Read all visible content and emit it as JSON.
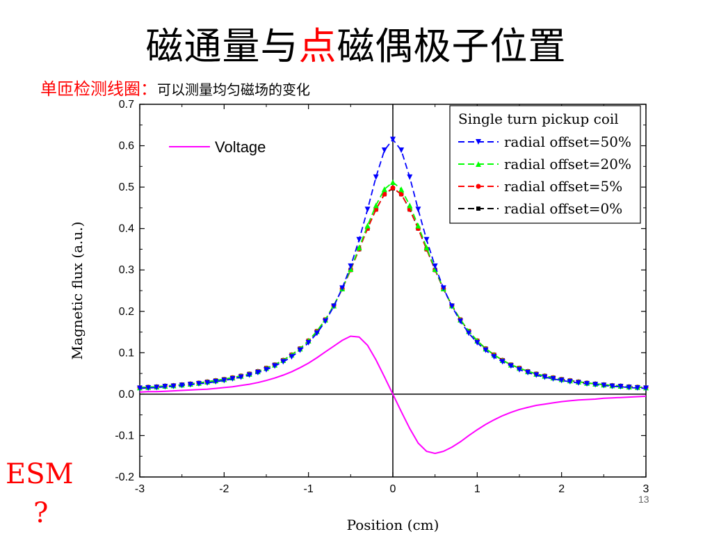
{
  "slide": {
    "title_part1": "磁通量与",
    "title_highlight": "点",
    "title_part2": "磁偶极子位置",
    "subtitle_red": "单匝检测线圈：",
    "subtitle_black": "可以测量均匀磁场的变化",
    "esm_label": "ESM",
    "esm_question": "?",
    "page_number": "13"
  },
  "chart_data": {
    "type": "line",
    "title": "",
    "xlabel": "Position  (cm)",
    "ylabel": "Magnetic flux  (a.u.)",
    "xlim": [
      -3,
      3
    ],
    "ylim": [
      -0.2,
      0.7
    ],
    "x_ticks": [
      -3,
      -2,
      -1,
      0,
      1,
      2,
      3
    ],
    "x_tick_labels": [
      "-3",
      "-2",
      "-1",
      "0",
      "1",
      "2",
      "3"
    ],
    "y_ticks": [
      -0.2,
      -0.1,
      0.0,
      0.1,
      0.2,
      0.3,
      0.4,
      0.5,
      0.6,
      0.7
    ],
    "y_tick_labels": [
      "-0.2",
      "-0.1",
      "0.0",
      "0.1",
      "0.2",
      "0.3",
      "0.4",
      "0.5",
      "0.6",
      "0.7"
    ],
    "grid": false,
    "legend_placement": "top-right",
    "legend_title": "Single turn pickup coil",
    "x": [
      -3.0,
      -2.9,
      -2.8,
      -2.7,
      -2.6,
      -2.5,
      -2.4,
      -2.3,
      -2.2,
      -2.1,
      -2.0,
      -1.9,
      -1.8,
      -1.7,
      -1.6,
      -1.5,
      -1.4,
      -1.3,
      -1.2,
      -1.1,
      -1.0,
      -0.9,
      -0.8,
      -0.7,
      -0.6,
      -0.5,
      -0.4,
      -0.3,
      -0.2,
      -0.1,
      0.0,
      0.1,
      0.2,
      0.3,
      0.4,
      0.5,
      0.6,
      0.7,
      0.8,
      0.9,
      1.0,
      1.1,
      1.2,
      1.3,
      1.4,
      1.5,
      1.6,
      1.7,
      1.8,
      1.9,
      2.0,
      2.1,
      2.2,
      2.3,
      2.4,
      2.5,
      2.6,
      2.7,
      2.8,
      2.9,
      3.0
    ],
    "series": [
      {
        "name": "radial offset=50%",
        "color": "#0000ff",
        "marker": "triangle-down",
        "values": [
          0.014,
          0.015,
          0.016,
          0.018,
          0.019,
          0.021,
          0.023,
          0.025,
          0.027,
          0.03,
          0.033,
          0.037,
          0.041,
          0.046,
          0.052,
          0.059,
          0.068,
          0.078,
          0.09,
          0.106,
          0.124,
          0.147,
          0.176,
          0.212,
          0.256,
          0.309,
          0.373,
          0.446,
          0.524,
          0.589,
          0.615,
          0.589,
          0.524,
          0.446,
          0.373,
          0.309,
          0.256,
          0.212,
          0.176,
          0.147,
          0.124,
          0.106,
          0.09,
          0.078,
          0.068,
          0.059,
          0.052,
          0.046,
          0.041,
          0.037,
          0.033,
          0.03,
          0.027,
          0.025,
          0.023,
          0.021,
          0.019,
          0.018,
          0.016,
          0.015,
          0.014
        ]
      },
      {
        "name": "radial offset=20%",
        "color": "#00ff00",
        "marker": "triangle-up",
        "values": [
          0.016,
          0.017,
          0.018,
          0.02,
          0.021,
          0.023,
          0.025,
          0.027,
          0.03,
          0.033,
          0.036,
          0.04,
          0.044,
          0.049,
          0.055,
          0.063,
          0.071,
          0.082,
          0.095,
          0.11,
          0.129,
          0.152,
          0.18,
          0.214,
          0.255,
          0.302,
          0.354,
          0.407,
          0.456,
          0.495,
          0.512,
          0.495,
          0.456,
          0.407,
          0.354,
          0.302,
          0.255,
          0.214,
          0.18,
          0.152,
          0.129,
          0.11,
          0.095,
          0.082,
          0.071,
          0.063,
          0.055,
          0.049,
          0.044,
          0.04,
          0.036,
          0.033,
          0.03,
          0.027,
          0.025,
          0.023,
          0.021,
          0.02,
          0.018,
          0.017,
          0.016
        ]
      },
      {
        "name": "radial offset=5%",
        "color": "#ff0000",
        "marker": "circle",
        "values": [
          0.016,
          0.017,
          0.018,
          0.02,
          0.021,
          0.023,
          0.025,
          0.027,
          0.03,
          0.033,
          0.036,
          0.04,
          0.044,
          0.049,
          0.055,
          0.063,
          0.071,
          0.082,
          0.095,
          0.11,
          0.129,
          0.152,
          0.18,
          0.214,
          0.254,
          0.3,
          0.35,
          0.4,
          0.446,
          0.483,
          0.498,
          0.483,
          0.446,
          0.4,
          0.35,
          0.3,
          0.254,
          0.214,
          0.18,
          0.152,
          0.129,
          0.11,
          0.095,
          0.082,
          0.071,
          0.063,
          0.055,
          0.049,
          0.044,
          0.04,
          0.036,
          0.033,
          0.03,
          0.027,
          0.025,
          0.023,
          0.021,
          0.02,
          0.018,
          0.017,
          0.016
        ]
      },
      {
        "name": "radial offset=0%",
        "color": "#000000",
        "marker": "square",
        "values": [
          0.016,
          0.017,
          0.018,
          0.02,
          0.021,
          0.023,
          0.025,
          0.027,
          0.03,
          0.033,
          0.036,
          0.04,
          0.044,
          0.049,
          0.055,
          0.063,
          0.071,
          0.082,
          0.095,
          0.11,
          0.129,
          0.152,
          0.18,
          0.214,
          0.254,
          0.3,
          0.35,
          0.4,
          0.446,
          0.483,
          0.497,
          0.483,
          0.446,
          0.4,
          0.35,
          0.3,
          0.254,
          0.214,
          0.18,
          0.152,
          0.129,
          0.11,
          0.095,
          0.082,
          0.071,
          0.063,
          0.055,
          0.049,
          0.044,
          0.04,
          0.036,
          0.033,
          0.03,
          0.027,
          0.025,
          0.023,
          0.021,
          0.02,
          0.018,
          0.017,
          0.016
        ]
      },
      {
        "name": "Voltage",
        "color": "#ff00ff",
        "marker": "none",
        "values": [
          0.005,
          0.006,
          0.006,
          0.007,
          0.008,
          0.009,
          0.01,
          0.011,
          0.012,
          0.014,
          0.016,
          0.018,
          0.021,
          0.024,
          0.028,
          0.033,
          0.039,
          0.046,
          0.054,
          0.064,
          0.075,
          0.088,
          0.102,
          0.116,
          0.13,
          0.14,
          0.138,
          0.118,
          0.083,
          0.042,
          0.0,
          -0.042,
          -0.083,
          -0.118,
          -0.138,
          -0.143,
          -0.138,
          -0.128,
          -0.115,
          -0.1,
          -0.086,
          -0.073,
          -0.062,
          -0.052,
          -0.044,
          -0.037,
          -0.032,
          -0.027,
          -0.024,
          -0.021,
          -0.018,
          -0.016,
          -0.014,
          -0.013,
          -0.012,
          -0.01,
          -0.009,
          -0.008,
          -0.007,
          -0.006,
          -0.005
        ]
      }
    ]
  }
}
